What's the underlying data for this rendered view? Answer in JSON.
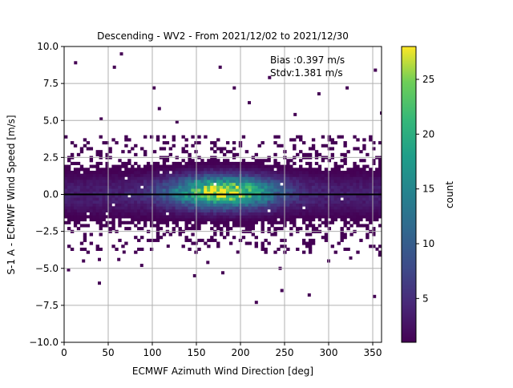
{
  "chart_data": {
    "type": "heatmap",
    "title": "Descending - WV2 - From 2021/12/02 to 2021/12/30",
    "xlabel": "ECMWF Azimuth Wind Direction [deg]",
    "ylabel": "S-1 A - ECMWF Wind Speed [m/s]",
    "xlim": [
      0,
      360
    ],
    "ylim": [
      -10,
      10
    ],
    "x_ticks": [
      "0",
      "50",
      "100",
      "150",
      "200",
      "250",
      "300",
      "350"
    ],
    "y_ticks": [
      "−10.0",
      "−7.5",
      "−5.0",
      "−2.5",
      "0.0",
      "2.5",
      "5.0",
      "7.5",
      "10.0"
    ],
    "grid": true,
    "colormap": "viridis",
    "colorbar": {
      "label": "count",
      "range": [
        1,
        28
      ],
      "ticks": [
        "5",
        "10",
        "15",
        "20",
        "25"
      ]
    },
    "annotations": {
      "bias": "Bias :0.397 m/s",
      "stdv": "Stdv:1.381 m/s"
    },
    "zero_line": 0,
    "density_summary": {
      "peak_direction_deg": 180,
      "peak_bias_ms": 0.2,
      "peak_count": 28,
      "core_band_ms": [
        -2.5,
        2.5
      ]
    },
    "outliers": [
      [
        13,
        8.9
      ],
      [
        65,
        9.5
      ],
      [
        57,
        8.6
      ],
      [
        42,
        5.1
      ],
      [
        5,
        -5.1
      ],
      [
        22,
        -4.5
      ],
      [
        40,
        -6.0
      ],
      [
        62,
        -4.4
      ],
      [
        68,
        -3.9
      ],
      [
        40,
        -4.4
      ],
      [
        102,
        7.2
      ],
      [
        128,
        4.9
      ],
      [
        148,
        -5.5
      ],
      [
        143,
        -3.1
      ],
      [
        177,
        8.6
      ],
      [
        193,
        7.2
      ],
      [
        218,
        -7.3
      ],
      [
        245,
        -5.0
      ],
      [
        247,
        -6.5
      ],
      [
        262,
        5.4
      ],
      [
        278,
        -6.8
      ],
      [
        321,
        7.2
      ],
      [
        353,
        8.4
      ],
      [
        360,
        5.5
      ],
      [
        355,
        -3.7
      ],
      [
        352,
        -6.9
      ],
      [
        358,
        -4.1
      ],
      [
        108,
        5.8
      ],
      [
        180,
        -5.3
      ],
      [
        210,
        6.2
      ],
      [
        289,
        6.8
      ],
      [
        233,
        7.9
      ],
      [
        118,
        -3.5
      ],
      [
        325,
        -4.3
      ],
      [
        300,
        -4.5
      ],
      [
        88,
        -4.8
      ],
      [
        163,
        -4.6
      ],
      [
        197,
        -3.9
      ]
    ]
  }
}
